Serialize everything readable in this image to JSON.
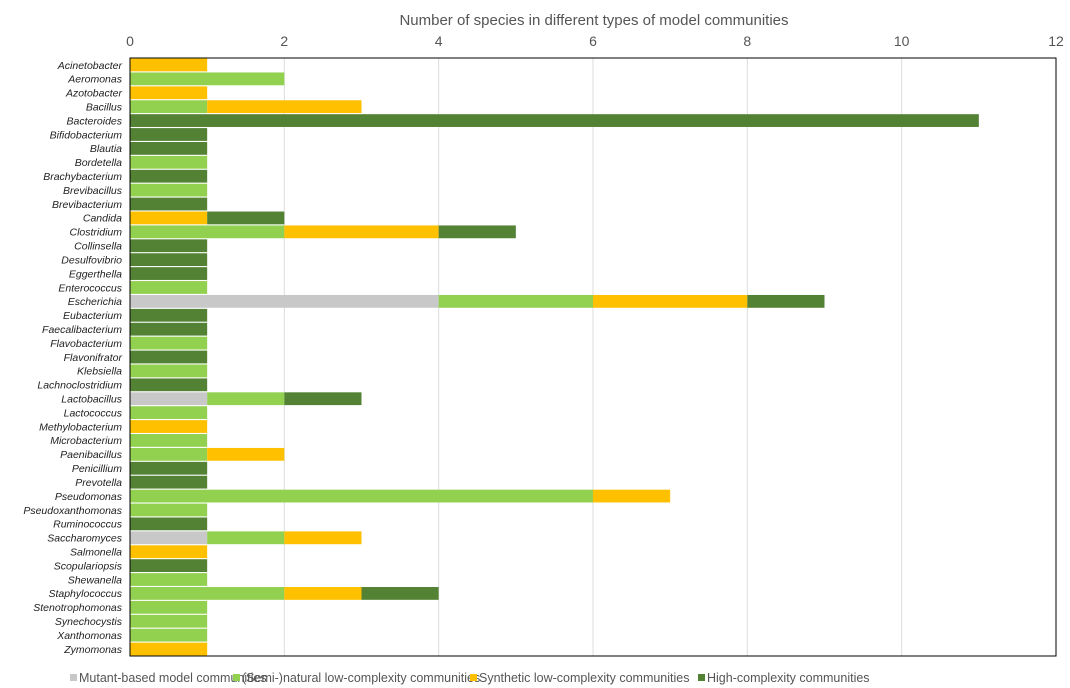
{
  "chart_data": {
    "type": "bar",
    "orientation": "horizontal",
    "stacked": true,
    "title": "",
    "xlabel": "Number of species in different types of model communities",
    "ylabel": "",
    "xlim": [
      0,
      12
    ],
    "x_ticks": [
      "0",
      "2",
      "4",
      "6",
      "8",
      "10",
      "12"
    ],
    "grid": true,
    "legend_position": "bottom",
    "categories": [
      "Acinetobacter",
      "Aeromonas",
      "Azotobacter",
      "Bacillus",
      "Bacteroides",
      "Bifidobacterium",
      "Blautia",
      "Bordetella",
      "Brachybacterium",
      "Brevibacillus",
      "Brevibacterium",
      "Candida",
      "Clostridium",
      "Collinsella",
      "Desulfovibrio",
      "Eggerthella",
      "Enterococcus",
      "Escherichia",
      "Eubacterium",
      "Faecalibacterium",
      "Flavobacterium",
      "Flavonifrator",
      "Klebsiella",
      "Lachnoclostridium",
      "Lactobacillus",
      "Lactococcus",
      "Methylobacterium",
      "Microbacterium",
      "Paenibacillus",
      "Penicillium",
      "Prevotella",
      "Pseudomonas",
      "Pseudoxanthomonas",
      "Ruminococcus",
      "Saccharomyces",
      "Salmonella",
      "Scopulariopsis",
      "Shewanella",
      "Staphylococcus",
      "Stenotrophomonas",
      "Synechocystis",
      "Xanthomonas",
      "Zymomonas"
    ],
    "series": [
      {
        "name": "Mutant-based model communities",
        "color": "#c8c8c8",
        "values": [
          0,
          0,
          0,
          0,
          0,
          0,
          0,
          0,
          0,
          0,
          0,
          0,
          0,
          0,
          0,
          0,
          0,
          4,
          0,
          0,
          0,
          0,
          0,
          0,
          1,
          0,
          0,
          0,
          0,
          0,
          0,
          0,
          0,
          0,
          1,
          0,
          0,
          0,
          0,
          0,
          0,
          0,
          0
        ]
      },
      {
        "name": "(Semi-)natural low-complexity communities",
        "color": "#92d050",
        "values": [
          0,
          2,
          0,
          1,
          0,
          0,
          0,
          1,
          0,
          1,
          0,
          0,
          2,
          0,
          0,
          0,
          1,
          2,
          0,
          0,
          1,
          0,
          1,
          0,
          1,
          1,
          0,
          1,
          1,
          0,
          0,
          6,
          1,
          0,
          1,
          0,
          0,
          1,
          2,
          1,
          1,
          1,
          0
        ]
      },
      {
        "name": "Synthetic low-complexity communities",
        "color": "#ffc000",
        "values": [
          1,
          0,
          1,
          2,
          0,
          0,
          0,
          0,
          0,
          0,
          0,
          1,
          2,
          0,
          0,
          0,
          0,
          2,
          0,
          0,
          0,
          0,
          0,
          0,
          0,
          0,
          1,
          0,
          1,
          0,
          0,
          1,
          0,
          0,
          1,
          1,
          0,
          0,
          1,
          0,
          0,
          0,
          1
        ]
      },
      {
        "name": "High-complexity communities",
        "color": "#548235",
        "values": [
          0,
          0,
          0,
          0,
          11,
          1,
          1,
          0,
          1,
          0,
          1,
          1,
          1,
          1,
          1,
          1,
          0,
          1,
          1,
          1,
          0,
          1,
          0,
          1,
          1,
          0,
          0,
          0,
          0,
          1,
          1,
          0,
          0,
          1,
          0,
          0,
          1,
          0,
          1,
          0,
          0,
          0,
          0
        ]
      }
    ]
  }
}
